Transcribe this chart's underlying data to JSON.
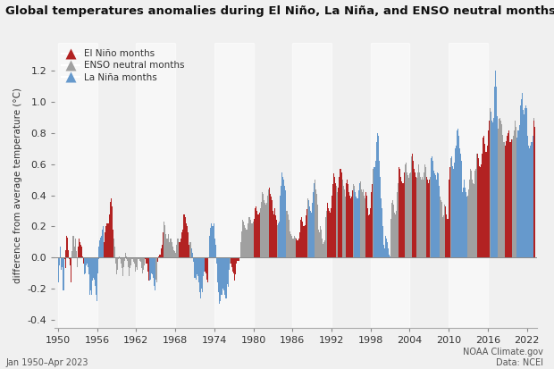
{
  "title": "Global temperatures anomalies during El Niño, La Niña, and ENSO neutral months",
  "ylabel": "difference from average temperature (°C)",
  "xlim": [
    1949.5,
    2023.5
  ],
  "ylim": [
    -0.45,
    1.38
  ],
  "yticks": [
    -0.4,
    -0.2,
    0.0,
    0.2,
    0.4,
    0.6,
    0.8,
    1.0,
    1.2
  ],
  "xticks": [
    1950,
    1956,
    1962,
    1968,
    1974,
    1980,
    1986,
    1992,
    1998,
    2004,
    2010,
    2016,
    2022
  ],
  "background_color": "#f0f0f0",
  "plot_bg_color": "#f0f0f0",
  "stripe_color": "#e0e0e0",
  "el_nino_color": "#b22222",
  "enso_neutral_color": "#a0a0a0",
  "la_nina_color": "#6699cc",
  "footer_left": "Jan 1950–Apr 2023",
  "footer_right": "NOAA Climate.gov\nData: NCEI",
  "legend_labels": [
    "El Niño months",
    "ENSO neutral months",
    "La Niña months"
  ],
  "legend_colors": [
    "#b22222",
    "#a0a0a0",
    "#6699cc"
  ]
}
